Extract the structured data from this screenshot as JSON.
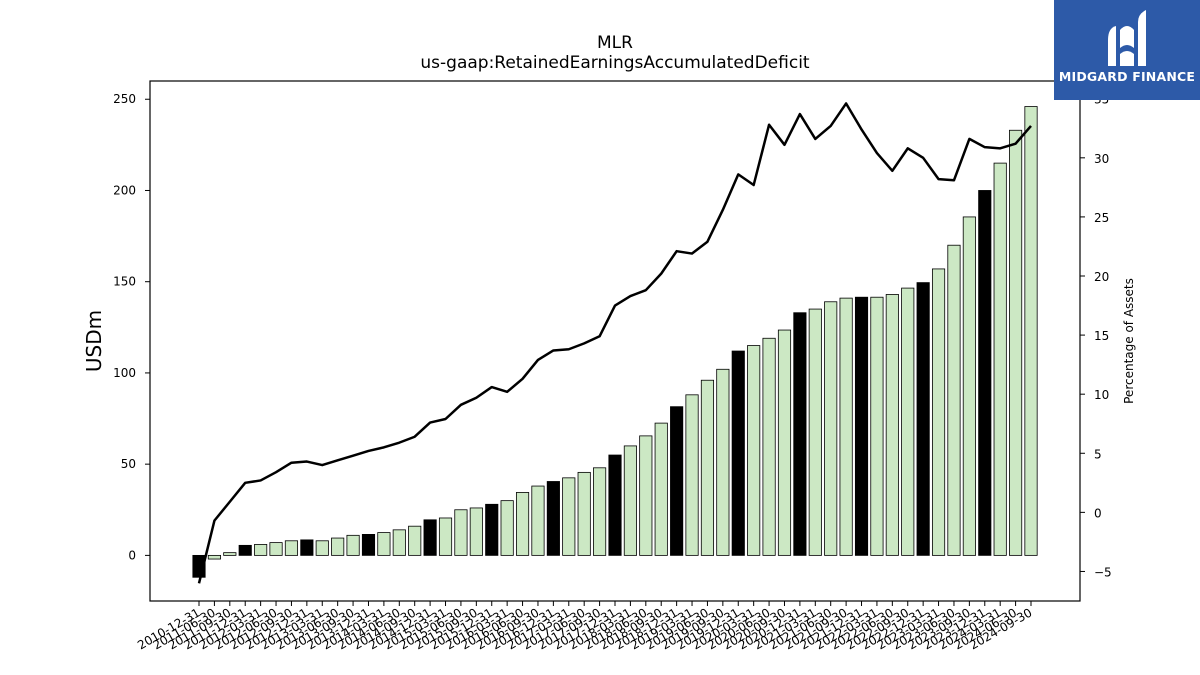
{
  "chart_data": {
    "type": "bar",
    "title": "MLR",
    "subtitle": "us-gaap:RetainedEarningsAccumulatedDeficit",
    "ylabel": "USDm",
    "y2label": "Percentage of Assets",
    "ylim": [
      -25,
      260
    ],
    "y2lim": [
      -7.5,
      36.5
    ],
    "yticks": [
      0,
      50,
      100,
      150,
      200,
      250
    ],
    "y2ticks": [
      -5,
      0,
      5,
      10,
      15,
      20,
      25,
      30,
      35
    ],
    "categories": [
      "2010-12-31",
      "2011-06-30",
      "2011-09-30",
      "2011-12-31",
      "2012-03-31",
      "2012-06-30",
      "2012-09-30",
      "2012-12-31",
      "2013-03-31",
      "2013-06-30",
      "2013-09-30",
      "2013-12-31",
      "2014-03-31",
      "2014-06-30",
      "2014-09-30",
      "2014-12-31",
      "2015-03-31",
      "2015-06-30",
      "2015-09-30",
      "2015-12-31",
      "2016-03-31",
      "2016-06-30",
      "2016-09-30",
      "2016-12-31",
      "2017-03-31",
      "2017-06-30",
      "2017-09-30",
      "2017-12-31",
      "2018-03-31",
      "2018-06-30",
      "2018-09-30",
      "2018-12-31",
      "2019-03-31",
      "2019-06-30",
      "2019-09-30",
      "2019-12-31",
      "2020-03-31",
      "2020-06-30",
      "2020-09-30",
      "2020-12-31",
      "2021-03-31",
      "2021-06-30",
      "2021-09-30",
      "2021-12-31",
      "2022-03-31",
      "2022-06-30",
      "2022-09-30",
      "2022-12-31",
      "2023-03-31",
      "2023-06-30",
      "2023-09-30",
      "2023-12-31",
      "2024-03-31",
      "2024-06-30",
      "2024-09-30"
    ],
    "series": [
      {
        "type": "bar",
        "values": [
          -12,
          -2,
          1.5,
          5.5,
          6,
          7,
          8,
          8.5,
          8,
          9.5,
          11,
          11.5,
          12.5,
          14,
          16,
          19.5,
          20.5,
          25,
          26,
          28,
          30,
          34.5,
          38,
          40.5,
          42.5,
          45.5,
          48,
          55,
          60,
          65.5,
          72.5,
          81.5,
          88,
          96,
          102,
          112,
          115,
          119,
          123.5,
          133,
          135,
          139,
          141,
          141.5,
          141.5,
          143,
          146.5,
          149.5,
          157,
          170,
          185.5,
          200,
          215,
          233,
          246
        ],
        "highlight": [
          true,
          false,
          false,
          true,
          false,
          false,
          false,
          true,
          false,
          false,
          false,
          true,
          false,
          false,
          false,
          true,
          false,
          false,
          false,
          true,
          false,
          false,
          false,
          true,
          false,
          false,
          false,
          true,
          false,
          false,
          false,
          true,
          false,
          false,
          false,
          true,
          false,
          false,
          false,
          true,
          false,
          false,
          false,
          true,
          false,
          false,
          false,
          true,
          false,
          false,
          false,
          true,
          false,
          false,
          false
        ],
        "colors": {
          "normal": "#cce8c4",
          "highlight": "#000000",
          "edge": "#000000"
        }
      },
      {
        "type": "line",
        "axis": "right",
        "color": "#000000",
        "values": [
          -6,
          -0.7,
          0.9,
          2.5,
          2.7,
          3.4,
          4.2,
          4.3,
          4.0,
          4.4,
          4.8,
          5.2,
          5.5,
          5.9,
          6.4,
          7.6,
          7.9,
          9.1,
          9.7,
          10.6,
          10.2,
          11.3,
          12.9,
          13.7,
          13.8,
          14.3,
          14.9,
          17.5,
          18.3,
          18.8,
          20.2,
          22.1,
          21.9,
          22.9,
          25.6,
          28.6,
          27.7,
          32.8,
          31.1,
          33.7,
          31.6,
          32.7,
          34.6,
          32.4,
          30.4,
          28.9,
          30.8,
          30.0,
          28.2,
          28.1,
          31.6,
          30.9,
          30.8,
          31.2,
          32.7
        ]
      }
    ]
  },
  "logo": {
    "text": "MIDGARD FINANCE",
    "bg_color": "#2d5aa8",
    "icon": "midgard-logo-icon"
  }
}
